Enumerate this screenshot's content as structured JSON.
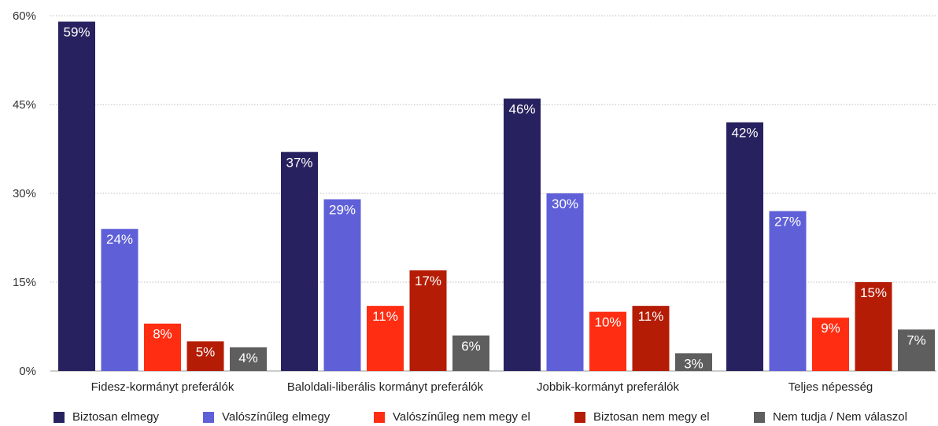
{
  "chart_data": {
    "type": "bar",
    "title": "",
    "xlabel": "",
    "ylabel": "",
    "ylim": [
      0,
      60
    ],
    "yticks": [
      "0%",
      "15%",
      "30%",
      "45%",
      "60%"
    ],
    "ytick_values": [
      0,
      15,
      30,
      45,
      60
    ],
    "grid": true,
    "legend_position": "bottom",
    "categories": [
      "Fidesz-kormányt preferálók",
      "Baloldali-liberális kormányt preferálók",
      "Jobbik-kormányt preferálók",
      "Teljes népesség"
    ],
    "series": [
      {
        "name": "Biztosan elmegy",
        "color": "#27225f",
        "values": [
          59,
          37,
          46,
          42
        ],
        "labels": [
          "59%",
          "37%",
          "46%",
          "42%"
        ]
      },
      {
        "name": "Valószínűleg elmegy",
        "color": "#5f60d8",
        "values": [
          24,
          29,
          30,
          27
        ],
        "labels": [
          "24%",
          "29%",
          "30%",
          "27%"
        ]
      },
      {
        "name": "Valószínűleg nem megy el",
        "color": "#ff2d12",
        "values": [
          8,
          11,
          10,
          9
        ],
        "labels": [
          "8%",
          "11%",
          "10%",
          "9%"
        ]
      },
      {
        "name": "Biztosan nem megy el",
        "color": "#b51c05",
        "values": [
          5,
          17,
          11,
          15
        ],
        "labels": [
          "5%",
          "17%",
          "11%",
          "15%"
        ]
      },
      {
        "name": "Nem tudja / Nem válaszol",
        "color": "#5e5e5e",
        "values": [
          4,
          6,
          3,
          7
        ],
        "labels": [
          "4%",
          "6%",
          "3%",
          "7%"
        ]
      }
    ]
  }
}
